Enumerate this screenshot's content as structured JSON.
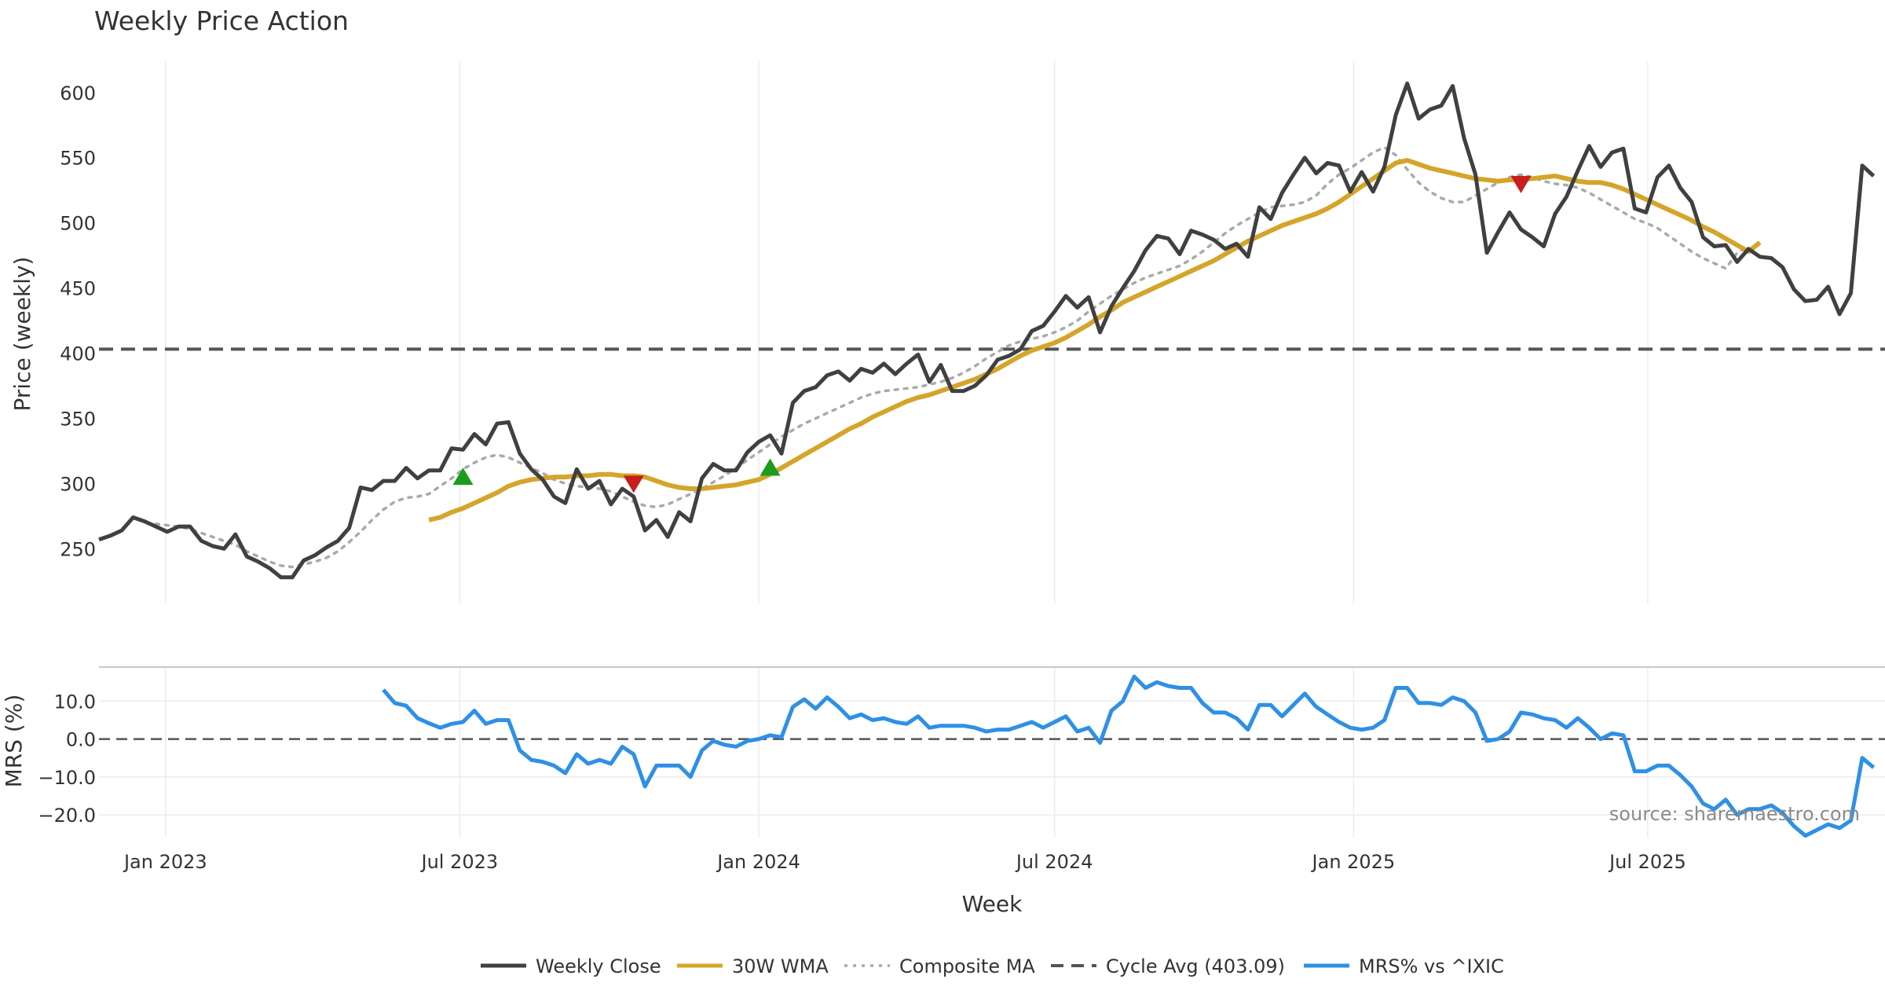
{
  "chart_data": {
    "title": "Weekly Price Action",
    "xlabel": "Week",
    "source_note": "source: sharemaestro.com",
    "x_ticks": [
      "Jan 2023",
      "Jul 2023",
      "Jan 2024",
      "Jul 2024",
      "Jan 2025",
      "Jul 2025"
    ],
    "x_range": [
      "2022-11-21",
      "2025-11-24"
    ],
    "price_panel": {
      "type": "line",
      "ylabel": "Price (weekly)",
      "ylim": [
        208,
        624
      ],
      "yticks": [
        250,
        300,
        350,
        400,
        450,
        500,
        550,
        600
      ],
      "grid": true,
      "series": [
        {
          "name": "Weekly Close",
          "color": "#404040",
          "style": "solid",
          "values": [
            257,
            260,
            264,
            274,
            271,
            267,
            263,
            267,
            267,
            256,
            252,
            250,
            261,
            244,
            240,
            235,
            228,
            228,
            241,
            245,
            251,
            256,
            266,
            297,
            295,
            302,
            302,
            312,
            304,
            310,
            310,
            327,
            326,
            338,
            330,
            346,
            347,
            323,
            311,
            303,
            290,
            285,
            311,
            296,
            302,
            284,
            296,
            290,
            264,
            272,
            259,
            278,
            271,
            304,
            315,
            310,
            310,
            324,
            332,
            337,
            323,
            362,
            371,
            374,
            383,
            386,
            379,
            388,
            385,
            392,
            384,
            392,
            399,
            378,
            391,
            371,
            371,
            375,
            383,
            395,
            398,
            403,
            417,
            421,
            432,
            444,
            435,
            443,
            416,
            436,
            450,
            463,
            479,
            490,
            488,
            476,
            494,
            491,
            487,
            480,
            484,
            474,
            512,
            503,
            523,
            537,
            550,
            538,
            546,
            544,
            524,
            539,
            524,
            543,
            583,
            607,
            580,
            587,
            590,
            605,
            565,
            537,
            477,
            493,
            508,
            495,
            489,
            482,
            507,
            520,
            540,
            559,
            543,
            554,
            557,
            511,
            508,
            535,
            544,
            527,
            516,
            489,
            482,
            483,
            470,
            480,
            474,
            473,
            466,
            449,
            440,
            441,
            451,
            430,
            446,
            544,
            536
          ]
        },
        {
          "name": "30W WMA",
          "color": "#D4A52A",
          "style": "solid",
          "start_index": 29,
          "values": [
            272,
            274,
            278,
            281,
            285,
            289,
            293,
            298,
            301,
            303,
            304,
            305,
            305,
            306,
            306,
            307,
            307,
            306,
            306,
            305,
            302,
            299,
            297,
            296,
            296,
            297,
            298,
            299,
            301,
            303,
            307,
            312,
            317,
            322,
            327,
            332,
            337,
            342,
            346,
            351,
            355,
            359,
            363,
            366,
            368,
            371,
            374,
            377,
            380,
            384,
            388,
            393,
            398,
            402,
            405,
            408,
            412,
            417,
            422,
            428,
            433,
            439,
            443,
            447,
            451,
            455,
            459,
            463,
            467,
            471,
            476,
            481,
            486,
            490,
            494,
            498,
            501,
            504,
            507,
            511,
            516,
            522,
            528,
            534,
            540,
            546,
            548,
            545,
            542,
            540,
            538,
            536,
            534,
            533,
            532,
            533,
            533,
            534,
            535,
            536,
            534,
            532,
            531,
            531,
            529,
            526,
            522,
            518,
            514,
            510,
            506,
            502,
            497,
            493,
            488,
            483,
            478,
            485
          ]
        },
        {
          "name": "Composite MA",
          "color": "#AAAAAA",
          "style": "dotted",
          "start_index": 5,
          "values": [
            269,
            268,
            267,
            265,
            262,
            259,
            256,
            253,
            248,
            244,
            240,
            237,
            236,
            238,
            240,
            243,
            248,
            255,
            263,
            272,
            280,
            286,
            289,
            290,
            292,
            298,
            304,
            311,
            316,
            320,
            322,
            320,
            316,
            312,
            308,
            303,
            300,
            298,
            297,
            296,
            294,
            290,
            286,
            283,
            282,
            284,
            288,
            292,
            296,
            301,
            306,
            312,
            318,
            324,
            330,
            336,
            341,
            346,
            350,
            354,
            358,
            362,
            366,
            369,
            371,
            372,
            373,
            374,
            376,
            378,
            381,
            385,
            390,
            396,
            401,
            406,
            409,
            411,
            413,
            416,
            420,
            425,
            432,
            438,
            444,
            449,
            454,
            458,
            461,
            464,
            467,
            472,
            478,
            485,
            492,
            498,
            503,
            508,
            512,
            513,
            514,
            516,
            521,
            530,
            537,
            542,
            548,
            554,
            558,
            552,
            541,
            531,
            524,
            519,
            516,
            516,
            521,
            526,
            531,
            535,
            537,
            535,
            532,
            530,
            529,
            527,
            523,
            518,
            513,
            508,
            503,
            500,
            496,
            490,
            484,
            478,
            473,
            469,
            465,
            477,
            482
          ]
        },
        {
          "name": "Cycle Avg (403.09)",
          "color": "#555555",
          "style": "dashed",
          "value": 403.09
        }
      ],
      "markers": [
        {
          "type": "buy",
          "color": "#1E9B1E",
          "index": 32,
          "value": 305
        },
        {
          "type": "sell",
          "color": "#C81E1E",
          "index": 47,
          "value": 300
        },
        {
          "type": "buy",
          "color": "#1E9B1E",
          "index": 59,
          "value": 312
        },
        {
          "type": "sell",
          "color": "#C81E1E",
          "index": 125,
          "value": 530
        }
      ]
    },
    "mrs_panel": {
      "type": "line",
      "ylabel": "MRS (%)",
      "ylim": [
        -26,
        19
      ],
      "yticks": [
        10.0,
        0.0,
        -10.0,
        -20.0
      ],
      "ytick_labels": [
        "10.0",
        "0.0",
        "−10.0",
        "−20.0"
      ],
      "zero_line": true,
      "series": [
        {
          "name": "MRS% vs ^IXIC",
          "color": "#2E90E6",
          "style": "solid",
          "start_index": 25,
          "values": [
            13.0,
            9.5,
            8.8,
            5.5,
            4.2,
            3.0,
            4.0,
            4.5,
            7.5,
            4.0,
            5.0,
            5.0,
            -3.0,
            -5.5,
            -6.0,
            -7.0,
            -9.0,
            -4.0,
            -6.5,
            -5.5,
            -6.5,
            -2.0,
            -4.0,
            -12.5,
            -7.0,
            -7.0,
            -7.0,
            -10.0,
            -3.0,
            -0.5,
            -1.5,
            -2.0,
            -0.5,
            0.0,
            1.0,
            0.5,
            8.5,
            10.5,
            8.0,
            11.0,
            8.5,
            5.5,
            6.5,
            5.0,
            5.5,
            4.5,
            4.0,
            6.0,
            3.0,
            3.5,
            3.5,
            3.5,
            3.0,
            2.0,
            2.5,
            2.5,
            3.5,
            4.5,
            3.0,
            4.5,
            6.0,
            2.0,
            3.0,
            -1.0,
            7.5,
            10.0,
            16.5,
            13.5,
            15.0,
            14.0,
            13.5,
            13.5,
            9.5,
            7.0,
            7.0,
            5.5,
            2.5,
            9.0,
            9.0,
            6.0,
            9.0,
            12.0,
            8.5,
            6.5,
            4.5,
            3.0,
            2.5,
            3.0,
            5.0,
            13.5,
            13.5,
            9.5,
            9.5,
            9.0,
            11.0,
            10.0,
            7.0,
            -0.5,
            0.0,
            2.0,
            7.0,
            6.5,
            5.5,
            5.0,
            3.0,
            5.5,
            3.0,
            0.0,
            1.5,
            1.0,
            -8.5,
            -8.5,
            -7.0,
            -7.0,
            -9.5,
            -12.5,
            -17.0,
            -18.5,
            -16.0,
            -20.0,
            -18.5,
            -18.5,
            -17.5,
            -19.5,
            -23.0,
            -25.5,
            -24.0,
            -22.5,
            -23.5,
            -21.5,
            -5.0,
            -7.5
          ]
        }
      ]
    },
    "legend": [
      {
        "label": "Weekly Close",
        "color": "#404040",
        "style": "solid"
      },
      {
        "label": "30W WMA",
        "color": "#D4A52A",
        "style": "solid"
      },
      {
        "label": "Composite MA",
        "color": "#AAAAAA",
        "style": "dotted"
      },
      {
        "label": "Cycle Avg (403.09)",
        "color": "#555555",
        "style": "dashed"
      },
      {
        "label": "MRS% vs ^IXIC",
        "color": "#2E90E6",
        "style": "solid"
      }
    ]
  }
}
